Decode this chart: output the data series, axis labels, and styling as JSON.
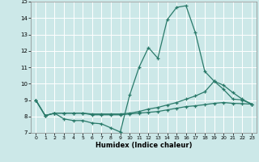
{
  "xlabel": "Humidex (Indice chaleur)",
  "xlim": [
    -0.5,
    23.5
  ],
  "ylim": [
    7,
    15
  ],
  "yticks": [
    7,
    8,
    9,
    10,
    11,
    12,
    13,
    14,
    15
  ],
  "xticks": [
    0,
    1,
    2,
    3,
    4,
    5,
    6,
    7,
    8,
    9,
    10,
    11,
    12,
    13,
    14,
    15,
    16,
    17,
    18,
    19,
    20,
    21,
    22,
    23
  ],
  "bg_color": "#cce8e8",
  "grid_color": "#ffffff",
  "line_color": "#2a7a6a",
  "line1_x": [
    0,
    1,
    2,
    3,
    4,
    5,
    6,
    7,
    8,
    9,
    10,
    11,
    12,
    13,
    14,
    15,
    16,
    17,
    18,
    19,
    20,
    21,
    22,
    23
  ],
  "line1_y": [
    9.0,
    8.05,
    8.2,
    7.85,
    7.75,
    7.75,
    7.6,
    7.55,
    7.3,
    7.05,
    9.3,
    11.0,
    12.2,
    11.55,
    13.9,
    14.65,
    14.75,
    13.1,
    10.75,
    10.15,
    9.65,
    9.05,
    9.0,
    8.75
  ],
  "line2_x": [
    0,
    1,
    2,
    3,
    4,
    5,
    6,
    7,
    8,
    9,
    10,
    11,
    12,
    13,
    14,
    15,
    16,
    17,
    18,
    19,
    20,
    21,
    22,
    23
  ],
  "line2_y": [
    9.0,
    8.05,
    8.2,
    8.2,
    8.2,
    8.2,
    8.15,
    8.15,
    8.15,
    8.15,
    8.2,
    8.3,
    8.45,
    8.55,
    8.7,
    8.85,
    9.05,
    9.25,
    9.5,
    10.15,
    9.9,
    9.45,
    9.05,
    8.75
  ],
  "line3_x": [
    0,
    1,
    2,
    3,
    4,
    5,
    6,
    7,
    8,
    9,
    10,
    11,
    12,
    13,
    14,
    15,
    16,
    17,
    18,
    19,
    20,
    21,
    22,
    23
  ],
  "line3_y": [
    9.0,
    8.05,
    8.2,
    8.2,
    8.2,
    8.2,
    8.1,
    8.1,
    8.1,
    8.1,
    8.15,
    8.2,
    8.25,
    8.3,
    8.4,
    8.5,
    8.6,
    8.65,
    8.72,
    8.8,
    8.85,
    8.8,
    8.78,
    8.75
  ]
}
